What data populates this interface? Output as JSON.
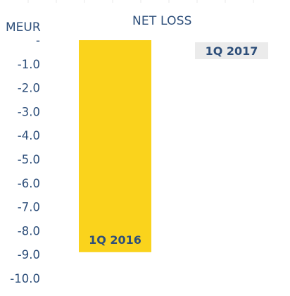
{
  "chart_data": {
    "type": "bar",
    "title": "NET LOSS",
    "unit_label": "MEUR",
    "categories": [
      "1Q 2016",
      "1Q 2017"
    ],
    "values": [
      -8.9,
      0
    ],
    "ylim": [
      -10.0,
      0
    ],
    "ytick_labels": [
      "-",
      "-1.0",
      "-2.0",
      "-3.0",
      "-4.0",
      "-5.0",
      "-6.0",
      "-7.0",
      "-8.0",
      "-9.0",
      "-10.0"
    ],
    "ytick_values": [
      0,
      -1,
      -2,
      -3,
      -4,
      -5,
      -6,
      -7,
      -8,
      -9,
      -10
    ],
    "bar_colors": [
      "#fad31c",
      "#ebebeb"
    ],
    "grid": false,
    "legend": "none"
  }
}
